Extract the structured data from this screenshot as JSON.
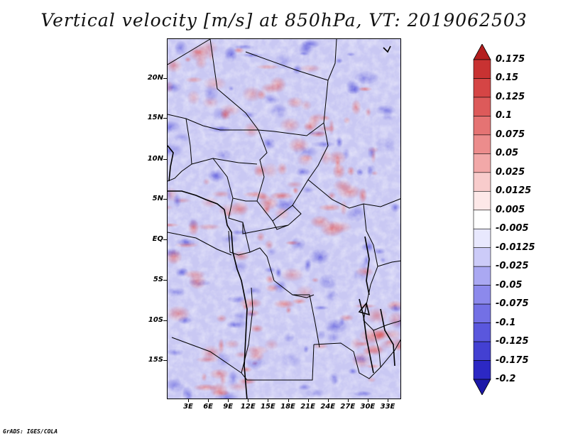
{
  "title": "Vertical velocity [m/s] at 850hPa, VT: 2019062503",
  "map": {
    "lat_labels": [
      "20N",
      "15N",
      "10N",
      "5N",
      "EQ",
      "5S",
      "10S",
      "15S"
    ],
    "lon_labels": [
      "3E",
      "6E",
      "9E",
      "12E",
      "15E",
      "18E",
      "21E",
      "24E",
      "27E",
      "30E",
      "33E"
    ],
    "boundary_color": "#000000",
    "positive_color": "#d94a4a",
    "negative_color": "#5555d9"
  },
  "colorbar": {
    "levels": [
      "0.175",
      "0.15",
      "0.125",
      "0.1",
      "0.075",
      "0.05",
      "0.025",
      "0.0125",
      "0.005",
      "-0.005",
      "-0.0125",
      "-0.025",
      "-0.05",
      "-0.075",
      "-0.1",
      "-0.125",
      "-0.175",
      "-0.2"
    ],
    "colors": [
      "#b41e1e",
      "#c83232",
      "#d54545",
      "#dd5a5a",
      "#e57373",
      "#ec8c8c",
      "#f2a8a8",
      "#f8cccc",
      "#fde8e8",
      "#ffffff",
      "#e8e8fd",
      "#cccbf8",
      "#aaa8f2",
      "#8c89ec",
      "#7370e5",
      "#5a57dd",
      "#4340d2",
      "#2c28c4",
      "#1c18a8"
    ]
  },
  "credit": "GrADS: IGES/COLA"
}
